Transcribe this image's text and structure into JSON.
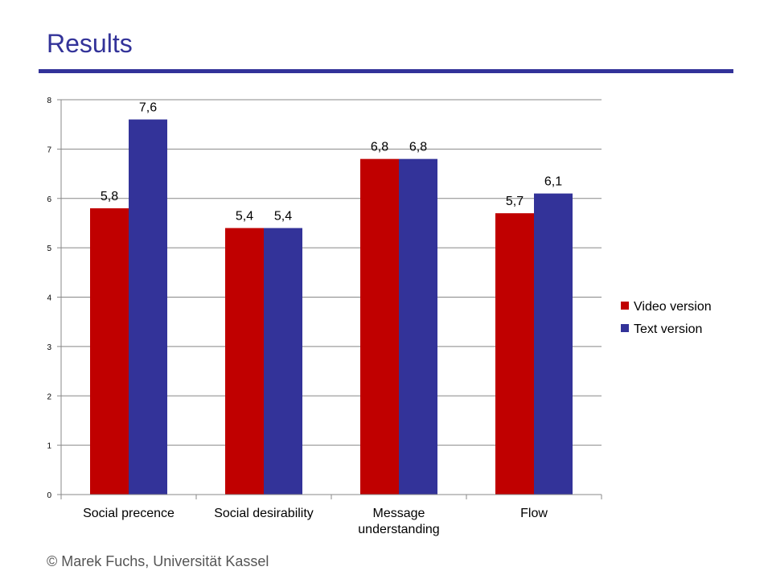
{
  "slide": {
    "title": "Results",
    "footer": "© Marek Fuchs, Universität Kassel"
  },
  "chart_data": {
    "type": "bar",
    "categories": [
      [
        "Social precence"
      ],
      [
        "Social desirability"
      ],
      [
        "Message",
        "understanding"
      ],
      [
        "Flow"
      ]
    ],
    "series": [
      {
        "name": "Video version",
        "color": "#C00000",
        "values": [
          5.8,
          5.4,
          6.8,
          5.7
        ],
        "labels": [
          "5,8",
          "5,4",
          "6,8",
          "5,7"
        ]
      },
      {
        "name": "Text version",
        "color": "#333399",
        "values": [
          7.6,
          5.4,
          6.8,
          6.1
        ],
        "labels": [
          "7,6",
          "5,4",
          "6,8",
          "6,1"
        ]
      }
    ],
    "ylim": [
      0,
      8
    ],
    "yticks": [
      0,
      1,
      2,
      3,
      4,
      5,
      6,
      7,
      8
    ],
    "grid": true,
    "legend_position": "right",
    "title": "",
    "xlabel": "",
    "ylabel": ""
  }
}
